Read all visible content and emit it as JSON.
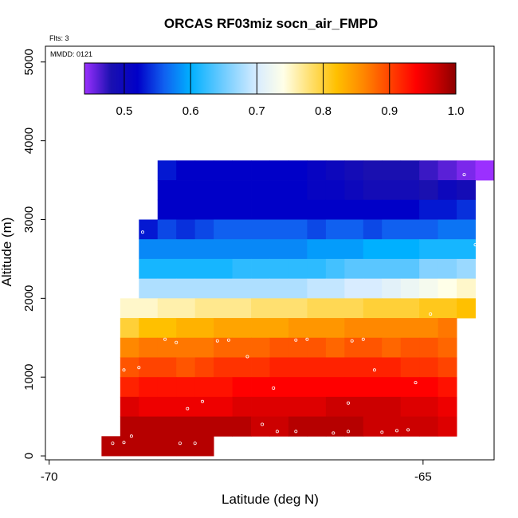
{
  "chart_data": {
    "type": "heatmap",
    "title": "ORCAS RF03miz socn_air_FMPD",
    "flights_note": "Flts: 3",
    "date_note": "MMDD: 0121",
    "xlabel": "Latitude (deg N)",
    "ylabel": "Altitude (m)",
    "xlim": [
      -70.05,
      -64.05
    ],
    "ylim": [
      -50,
      5200
    ],
    "x_ticks": [
      -70,
      -65
    ],
    "x_tick_labels": [
      "-70",
      "-65"
    ],
    "y_ticks": [
      0,
      1000,
      2000,
      3000,
      4000,
      5000
    ],
    "y_tick_labels": [
      "0",
      "1000",
      "2000",
      "3000",
      "4000",
      "5000"
    ],
    "colorbar": {
      "min": 0.44,
      "max": 1.0,
      "ticks": [
        0.5,
        0.6,
        0.7,
        0.8,
        0.9,
        1.0
      ],
      "tick_labels": [
        "0.5",
        "0.6",
        "0.7",
        "0.8",
        "0.9",
        "1.0"
      ],
      "stops": [
        [
          0.44,
          "#9b30ff"
        ],
        [
          0.48,
          "#1a10b0"
        ],
        [
          0.52,
          "#0000c8"
        ],
        [
          0.56,
          "#1060f0"
        ],
        [
          0.6,
          "#00b0ff"
        ],
        [
          0.65,
          "#70ccff"
        ],
        [
          0.7,
          "#d8ecff"
        ],
        [
          0.74,
          "#ffffe8"
        ],
        [
          0.78,
          "#ffe070"
        ],
        [
          0.82,
          "#ffc000"
        ],
        [
          0.86,
          "#ff8800"
        ],
        [
          0.9,
          "#ff4400"
        ],
        [
          0.94,
          "#ff0000"
        ],
        [
          0.97,
          "#cc0000"
        ],
        [
          1.0,
          "#8b0000"
        ]
      ]
    },
    "cell_width_deg": 0.25,
    "cell_height_m": 250,
    "rows": [
      {
        "alt": 3500,
        "lat_start": -68.55,
        "values": [
          0.53,
          0.52,
          0.52,
          0.52,
          0.52,
          0.52,
          0.52,
          0.52,
          0.51,
          0.5,
          0.49,
          0.48,
          0.48,
          0.48,
          0.47,
          0.46,
          0.45,
          0.44
        ]
      },
      {
        "alt": 3250,
        "lat_start": -68.55,
        "values": [
          0.52,
          0.52,
          0.52,
          0.52,
          0.52,
          0.52,
          0.52,
          0.52,
          0.51,
          0.51,
          0.5,
          0.49,
          0.49,
          0.49,
          0.48,
          0.5,
          0.49
        ]
      },
      {
        "alt": 3000,
        "lat_start": -68.55,
        "values": [
          0.52,
          0.52,
          0.52,
          0.52,
          0.52,
          0.52,
          0.52,
          0.52,
          0.52,
          0.52,
          0.52,
          0.52,
          0.52,
          0.52,
          0.53,
          0.53,
          0.54
        ]
      },
      {
        "alt": 2750,
        "lat_start": -68.8,
        "values": [
          0.53,
          0.55,
          0.54,
          0.55,
          0.56,
          0.56,
          0.56,
          0.56,
          0.56,
          0.55,
          0.56,
          0.56,
          0.55,
          0.56,
          0.56,
          0.56,
          0.57,
          0.57
        ]
      },
      {
        "alt": 2500,
        "lat_start": -68.8,
        "values": [
          0.58,
          0.58,
          0.58,
          0.58,
          0.58,
          0.58,
          0.58,
          0.58,
          0.58,
          0.59,
          0.59,
          0.59,
          0.6,
          0.6,
          0.6,
          0.61,
          0.61,
          0.61
        ]
      },
      {
        "alt": 2250,
        "lat_start": -68.8,
        "values": [
          0.61,
          0.61,
          0.61,
          0.61,
          0.61,
          0.62,
          0.62,
          0.62,
          0.62,
          0.62,
          0.63,
          0.64,
          0.64,
          0.64,
          0.64,
          0.66,
          0.66,
          0.67
        ]
      },
      {
        "alt": 2000,
        "lat_start": -68.8,
        "values": [
          0.68,
          0.68,
          0.68,
          0.68,
          0.68,
          0.68,
          0.68,
          0.68,
          0.68,
          0.69,
          0.69,
          0.7,
          0.7,
          0.71,
          0.72,
          0.73,
          0.74,
          0.75
        ]
      },
      {
        "alt": 1750,
        "lat_start": -69.05,
        "values": [
          0.75,
          0.75,
          0.76,
          0.76,
          0.77,
          0.77,
          0.77,
          0.78,
          0.78,
          0.78,
          0.79,
          0.79,
          0.79,
          0.8,
          0.8,
          0.8,
          0.81,
          0.81,
          0.82
        ]
      },
      {
        "alt": 1500,
        "lat_start": -69.05,
        "values": [
          0.8,
          0.82,
          0.82,
          0.83,
          0.83,
          0.84,
          0.84,
          0.84,
          0.84,
          0.85,
          0.85,
          0.85,
          0.86,
          0.86,
          0.86,
          0.86,
          0.86,
          0.87
        ]
      },
      {
        "alt": 1250,
        "lat_start": -69.05,
        "values": [
          0.86,
          0.87,
          0.87,
          0.87,
          0.87,
          0.88,
          0.88,
          0.88,
          0.89,
          0.89,
          0.89,
          0.88,
          0.89,
          0.89,
          0.88,
          0.89,
          0.89,
          0.88
        ]
      },
      {
        "alt": 1000,
        "lat_start": -69.05,
        "values": [
          0.89,
          0.9,
          0.9,
          0.89,
          0.9,
          0.91,
          0.91,
          0.91,
          0.92,
          0.92,
          0.92,
          0.92,
          0.92,
          0.92,
          0.92,
          0.91,
          0.91,
          0.9
        ]
      },
      {
        "alt": 750,
        "lat_start": -69.05,
        "values": [
          0.92,
          0.93,
          0.93,
          0.93,
          0.93,
          0.93,
          0.94,
          0.94,
          0.94,
          0.94,
          0.94,
          0.94,
          0.94,
          0.94,
          0.94,
          0.94,
          0.94,
          0.93
        ]
      },
      {
        "alt": 500,
        "lat_start": -69.05,
        "values": [
          0.96,
          0.95,
          0.95,
          0.95,
          0.95,
          0.95,
          0.96,
          0.96,
          0.96,
          0.96,
          0.96,
          0.97,
          0.97,
          0.97,
          0.97,
          0.96,
          0.96,
          0.95
        ]
      },
      {
        "alt": 250,
        "lat_start": -69.05,
        "values": [
          0.98,
          0.98,
          0.98,
          0.98,
          0.98,
          0.98,
          0.98,
          0.97,
          0.97,
          0.98,
          0.98,
          0.98,
          0.98,
          0.97,
          0.97,
          0.97,
          0.97,
          0.96
        ]
      },
      {
        "alt": 0,
        "lat_start": -69.3,
        "values": [
          0.98,
          0.98,
          0.98,
          0.98,
          0.98,
          0.98
        ]
      }
    ],
    "sample_points": [
      [
        -68.6,
        3730
      ],
      [
        -64.45,
        3570
      ],
      [
        -68.75,
        2840
      ],
      [
        -64.3,
        2680
      ],
      [
        -64.9,
        1800
      ],
      [
        -68.45,
        1480
      ],
      [
        -68.3,
        1440
      ],
      [
        -67.75,
        1460
      ],
      [
        -67.6,
        1470
      ],
      [
        -66.7,
        1470
      ],
      [
        -66.55,
        1480
      ],
      [
        -65.95,
        1460
      ],
      [
        -65.8,
        1480
      ],
      [
        -67.35,
        1260
      ],
      [
        -69.0,
        1090
      ],
      [
        -68.8,
        1120
      ],
      [
        -65.65,
        1090
      ],
      [
        -65.1,
        930
      ],
      [
        -67.0,
        860
      ],
      [
        -68.15,
        600
      ],
      [
        -67.95,
        690
      ],
      [
        -66.0,
        670
      ],
      [
        -67.15,
        400
      ],
      [
        -66.95,
        310
      ],
      [
        -66.7,
        310
      ],
      [
        -66.2,
        290
      ],
      [
        -66.0,
        310
      ],
      [
        -65.55,
        300
      ],
      [
        -65.35,
        320
      ],
      [
        -65.2,
        330
      ],
      [
        -69.1,
        400
      ],
      [
        -68.9,
        250
      ],
      [
        -69.0,
        170
      ],
      [
        -69.15,
        160
      ],
      [
        -68.25,
        160
      ],
      [
        -68.05,
        160
      ]
    ]
  }
}
